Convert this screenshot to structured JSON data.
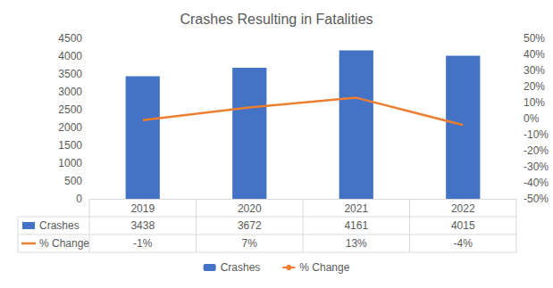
{
  "chart_data": {
    "type": "bar",
    "title": "Crashes Resulting in Fatalities",
    "categories": [
      "2019",
      "2020",
      "2021",
      "2022"
    ],
    "series": [
      {
        "name": "Crashes",
        "type": "bar",
        "color": "#4472c4",
        "values": [
          3438,
          3672,
          4161,
          4015
        ]
      },
      {
        "name": "% Change",
        "type": "line",
        "color": "#ed7d31",
        "axis": "y2",
        "marker": "none",
        "line_style": "solid",
        "values": [
          -1,
          7,
          13,
          -4
        ],
        "value_labels": [
          "-1%",
          "7%",
          "13%",
          "-4%"
        ]
      }
    ],
    "ylim": [
      0,
      4500
    ],
    "yticks": [
      0,
      500,
      1000,
      1500,
      2000,
      2500,
      3000,
      3500,
      4000,
      4500
    ],
    "y2lim": [
      -50,
      50
    ],
    "y2ticks": [
      {
        "value": -50,
        "label": "-50%"
      },
      {
        "value": -40,
        "label": "-40%"
      },
      {
        "value": -30,
        "label": "-30%"
      },
      {
        "value": -20,
        "label": "-20%"
      },
      {
        "value": -10,
        "label": "-10%"
      },
      {
        "value": 0,
        "label": "0%"
      },
      {
        "value": 10,
        "label": "10%"
      },
      {
        "value": 20,
        "label": "20%"
      },
      {
        "value": 30,
        "label": "30%"
      },
      {
        "value": 40,
        "label": "40%"
      },
      {
        "value": 50,
        "label": "50%"
      }
    ],
    "grid": false,
    "legend": "bottom"
  }
}
